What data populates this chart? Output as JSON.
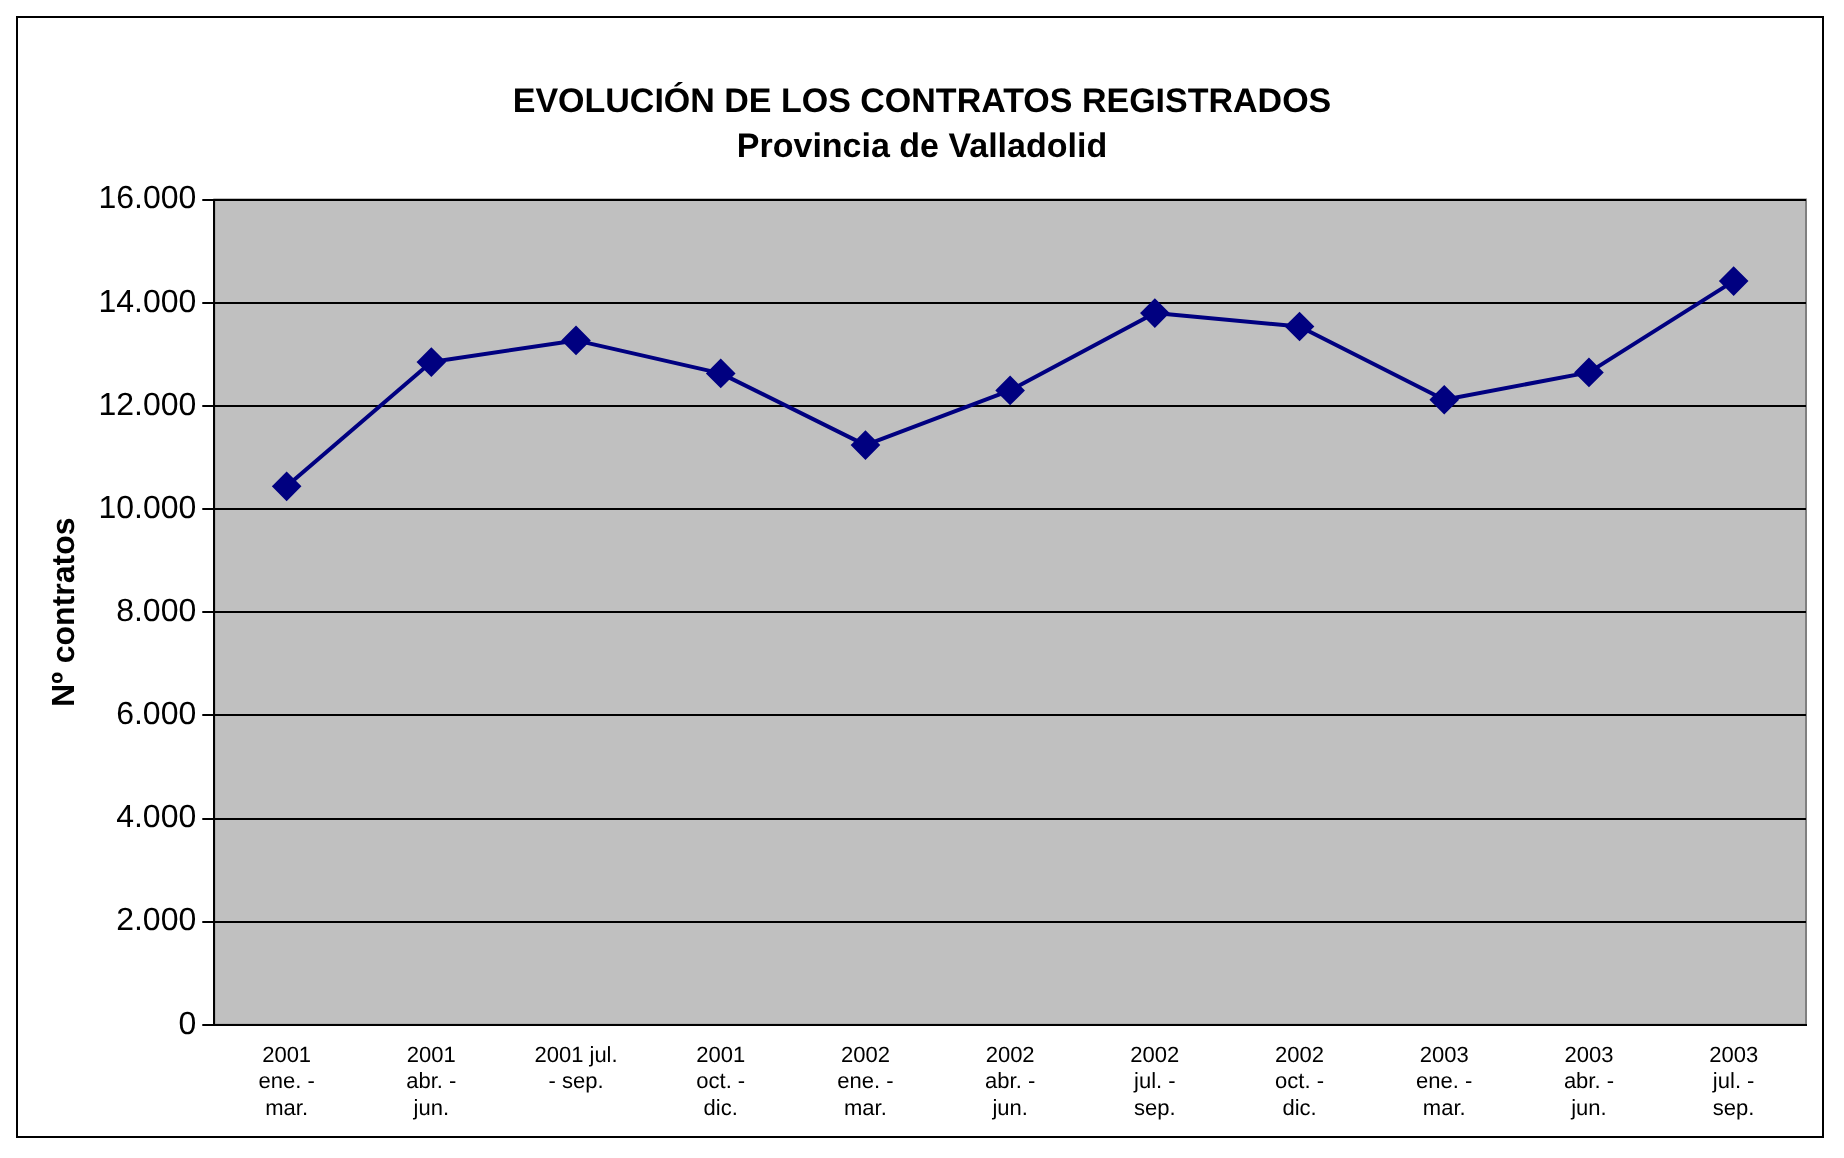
{
  "chart_data": {
    "type": "line",
    "title": "EVOLUCIÓN DE LOS CONTRATOS REGISTRADOS",
    "subtitle": "Provincia de Valladolid",
    "ylabel": "Nº contratos",
    "categories": [
      "2001\nene. -\nmar.",
      "2001\nabr. -\njun.",
      "2001 jul.\n- sep.",
      "2001\noct. -\ndic.",
      "2002\nene. -\nmar.",
      "2002\nabr. -\njun.",
      "2002\njul. -\nsep.",
      "2002\noct. -\ndic.",
      "2003\nene. -\nmar.",
      "2003\nabr. -\njun.",
      "2003\njul. -\nsep."
    ],
    "series": [
      {
        "color": "#000080",
        "values": [
          10440,
          12850,
          13270,
          12630,
          11240,
          12300,
          13800,
          13540,
          12120,
          12650,
          14420
        ]
      }
    ],
    "ylim": [
      0,
      16000
    ],
    "yticks": [
      {
        "value": 0,
        "label": "0"
      },
      {
        "value": 2000,
        "label": "2.000"
      },
      {
        "value": 4000,
        "label": "4.000"
      },
      {
        "value": 6000,
        "label": "6.000"
      },
      {
        "value": 8000,
        "label": "8.000"
      },
      {
        "value": 10000,
        "label": "10.000"
      },
      {
        "value": 12000,
        "label": "12.000"
      },
      {
        "value": 14000,
        "label": "14.000"
      },
      {
        "value": 16000,
        "label": "16.000"
      }
    ],
    "grid": "y",
    "legend": false,
    "marker": "diamond",
    "line_style": "solid"
  }
}
